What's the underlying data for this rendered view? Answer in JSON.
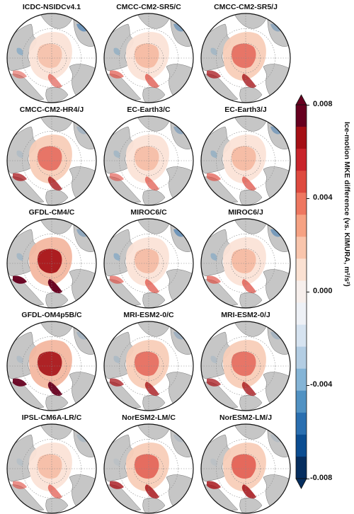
{
  "panels": [
    {
      "title": "ICDC-NSIDCv4.1",
      "intensity": 0.25,
      "blue": 0.55
    },
    {
      "title": "CMCC-CM2-SR5/C",
      "intensity": 0.45,
      "blue": 0.45
    },
    {
      "title": "CMCC-CM2-SR5/J",
      "intensity": 0.55,
      "blue": 0.35
    },
    {
      "title": "CMCC-CM2-HR4/J",
      "intensity": 0.55,
      "blue": 0.2
    },
    {
      "title": "EC-Earth3/C",
      "intensity": 0.35,
      "blue": 0.35
    },
    {
      "title": "EC-Earth3/J",
      "intensity": 0.45,
      "blue": 0.45
    },
    {
      "title": "GFDL-CM4/C",
      "intensity": 0.95,
      "blue": 0.35
    },
    {
      "title": "MIROC6/C",
      "intensity": 0.4,
      "blue": 0.55
    },
    {
      "title": "MIROC6/J",
      "intensity": 0.45,
      "blue": 0.5
    },
    {
      "title": "GFDL-OM4p5B/C",
      "intensity": 0.9,
      "blue": 0.2
    },
    {
      "title": "MRI-ESM2-0/C",
      "intensity": 0.55,
      "blue": 0.25
    },
    {
      "title": "MRI-ESM2-0/J",
      "intensity": 0.55,
      "blue": 0.2
    },
    {
      "title": "IPSL-CM6A-LR/C",
      "intensity": 0.35,
      "blue": 0.15
    },
    {
      "title": "NorESM2-LM/C",
      "intensity": 0.65,
      "blue": 0.1
    },
    {
      "title": "NorESM2-LM/J",
      "intensity": 0.7,
      "blue": 0.1
    }
  ],
  "colorbar": {
    "label": "Ice-motion MKE difference (vs. KIMURA, m²/s²)",
    "min": -0.008,
    "max": 0.008,
    "ticks": [
      "0.008",
      "0.004",
      "0.000",
      "-0.004",
      "-0.008"
    ],
    "colors": [
      "#67001f",
      "#a50f15",
      "#c9242b",
      "#de4a3f",
      "#ee7760",
      "#f6a283",
      "#f9c5ac",
      "#fbe1d2",
      "#f7efec",
      "#eef1f6",
      "#d6e3f0",
      "#b3cde3",
      "#84b4d6",
      "#5192c3",
      "#2a6fb0",
      "#0b4d91",
      "#062e5f"
    ]
  },
  "colors": {
    "land": "#c6c6c6",
    "ocean": "#ffffff",
    "grid": "#888888"
  }
}
